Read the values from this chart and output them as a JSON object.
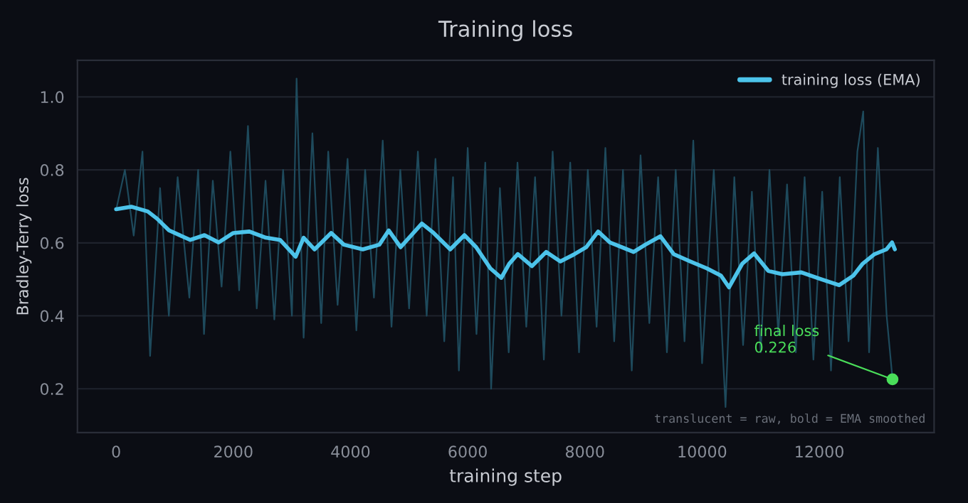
{
  "chart_data": {
    "type": "line",
    "title": "Training loss",
    "xlabel": "training step",
    "ylabel": "Bradley-Terry loss",
    "xlim": [
      -660,
      13960
    ],
    "xticks": [
      0,
      2000,
      4000,
      6000,
      8000,
      10000,
      12000
    ],
    "ylim": [
      0.08,
      1.1
    ],
    "yticks": [
      0.2,
      0.4,
      0.6,
      0.8,
      {
        "value": 1,
        "label": "1.0"
      }
    ],
    "grid": "y",
    "legend": "top right",
    "line_style": "solid",
    "marker": "none",
    "series": [
      {
        "color": "#1e4a5c",
        "x": [
          0,
          150,
          300,
          450,
          580,
          750,
          900,
          1050,
          1250,
          1400,
          1500,
          1650,
          1800,
          1950,
          2100,
          2250,
          2400,
          2550,
          2700,
          2850,
          3000,
          3080,
          3200,
          3350,
          3500,
          3620,
          3780,
          3950,
          4100,
          4250,
          4400,
          4550,
          4700,
          4850,
          5000,
          5150,
          5300,
          5450,
          5600,
          5750,
          5850,
          6000,
          6150,
          6300,
          6400,
          6550,
          6700,
          6850,
          7000,
          7150,
          7300,
          7450,
          7600,
          7750,
          7900,
          8050,
          8200,
          8350,
          8500,
          8650,
          8800,
          8950,
          9100,
          9250,
          9400,
          9550,
          9700,
          9850,
          10000,
          10200,
          10400,
          10550,
          10700,
          10850,
          11000,
          11150,
          11300,
          11450,
          11600,
          11750,
          11900,
          12050,
          12200,
          12350,
          12500,
          12650,
          12750,
          12850,
          13000,
          13150,
          13250
        ],
        "values": [
          0.69,
          0.8,
          0.62,
          0.85,
          0.29,
          0.75,
          0.4,
          0.78,
          0.45,
          0.8,
          0.35,
          0.77,
          0.48,
          0.85,
          0.47,
          0.92,
          0.42,
          0.77,
          0.39,
          0.8,
          0.4,
          1.05,
          0.34,
          0.9,
          0.38,
          0.85,
          0.43,
          0.83,
          0.36,
          0.8,
          0.45,
          0.88,
          0.37,
          0.8,
          0.42,
          0.85,
          0.4,
          0.83,
          0.33,
          0.78,
          0.25,
          0.86,
          0.35,
          0.82,
          0.2,
          0.75,
          0.3,
          0.82,
          0.37,
          0.78,
          0.28,
          0.85,
          0.4,
          0.82,
          0.3,
          0.8,
          0.37,
          0.86,
          0.33,
          0.8,
          0.25,
          0.84,
          0.38,
          0.78,
          0.3,
          0.8,
          0.33,
          0.88,
          0.27,
          0.8,
          0.15,
          0.78,
          0.32,
          0.74,
          0.3,
          0.8,
          0.35,
          0.76,
          0.3,
          0.78,
          0.28,
          0.74,
          0.25,
          0.78,
          0.33,
          0.85,
          0.96,
          0.3,
          0.86,
          0.4,
          0.226
        ]
      },
      {
        "name": "training loss (EMA)",
        "color": "#4cc3ea",
        "x": [
          0,
          258,
          540,
          700,
          903,
          1266,
          1508,
          1750,
          2000,
          2274,
          2556,
          2798,
          3065,
          3200,
          3387,
          3669,
          3887,
          4210,
          4492,
          4653,
          4855,
          5218,
          5419,
          5702,
          5944,
          6145,
          6387,
          6573,
          6710,
          6855,
          7097,
          7339,
          7581,
          7823,
          8024,
          8226,
          8427,
          8629,
          8831,
          9032,
          9290,
          9516,
          9798,
          10081,
          10323,
          10460,
          10686,
          10888,
          11130,
          11372,
          11694,
          12017,
          12339,
          12581,
          12742,
          12944,
          13146,
          13242,
          13290
        ],
        "values": [
          0.692,
          0.699,
          0.686,
          0.666,
          0.634,
          0.608,
          0.621,
          0.601,
          0.627,
          0.631,
          0.614,
          0.608,
          0.562,
          0.614,
          0.582,
          0.627,
          0.595,
          0.582,
          0.595,
          0.634,
          0.588,
          0.653,
          0.627,
          0.582,
          0.621,
          0.588,
          0.53,
          0.504,
          0.543,
          0.569,
          0.536,
          0.575,
          0.549,
          0.569,
          0.588,
          0.631,
          0.601,
          0.588,
          0.575,
          0.595,
          0.618,
          0.569,
          0.549,
          0.53,
          0.51,
          0.478,
          0.543,
          0.571,
          0.523,
          0.514,
          0.519,
          0.501,
          0.484,
          0.51,
          0.543,
          0.569,
          0.582,
          0.601,
          0.582
        ]
      }
    ],
    "annotations": [
      {
        "text": "final loss\n0.226",
        "x": 13250,
        "y": 0.226
      },
      "translucent = raw, bold = EMA smoothed"
    ]
  }
}
